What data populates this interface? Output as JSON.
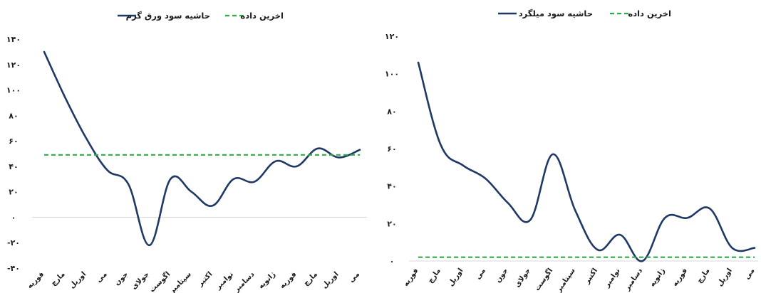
{
  "colors": {
    "series": "#1f3864",
    "reference": "#2eab49",
    "zero_line": "#d9d9d9",
    "text": "#1a1a1a"
  },
  "chart_data": [
    {
      "type": "line",
      "title": "",
      "xlabel": "",
      "ylabel": "",
      "categories": [
        "فوریه",
        "مارچ",
        "اوریل",
        "می",
        "جون",
        "جولای",
        "اگوست",
        "سپتامبر",
        "اکتبر",
        "نوامبر",
        "دسامبر",
        "ژانویه",
        "فوریه",
        "مارچ",
        "اوریل",
        "می"
      ],
      "series": [
        {
          "name": "حاشیه سود ورق گرم",
          "style": "solid",
          "values": [
            130,
            94,
            62,
            37,
            26,
            -22,
            30,
            20,
            9,
            30,
            28,
            44,
            40,
            54,
            47,
            53
          ]
        },
        {
          "name": "اخرین داده",
          "style": "dashed",
          "values": [
            49,
            49,
            49,
            49,
            49,
            49,
            49,
            49,
            49,
            49,
            49,
            49,
            49,
            49,
            49,
            49
          ]
        }
      ],
      "ylim": [
        -40,
        140
      ],
      "yticks": [
        140,
        120,
        100,
        80,
        60,
        40,
        20,
        0,
        -20,
        -40
      ],
      "ytick_labels": [
        "۱۴۰",
        "۱۲۰",
        "۱۰۰",
        "۸۰",
        "۶۰",
        "۴۰",
        "۲۰",
        "۰",
        "-۲۰",
        "-۴۰"
      ],
      "legend": "top"
    },
    {
      "type": "line",
      "title": "",
      "xlabel": "",
      "ylabel": "",
      "categories": [
        "فوریه",
        "مارچ",
        "اوریل",
        "می",
        "جون",
        "جولای",
        "اگوست",
        "سپتامبر",
        "اکتبر",
        "نوامبر",
        "دسامبر",
        "ژانویه",
        "فوریه",
        "مارچ",
        "اوریل",
        "می"
      ],
      "series": [
        {
          "name": "حاشیه سود میلگرد",
          "style": "solid",
          "values": [
            106,
            62,
            51,
            44,
            31,
            22,
            57,
            27,
            6,
            14,
            0,
            23,
            23,
            28,
            7,
            7
          ]
        },
        {
          "name": "اخرین داده",
          "style": "dashed",
          "values": [
            2,
            2,
            2,
            2,
            2,
            2,
            2,
            2,
            2,
            2,
            2,
            2,
            2,
            2,
            2,
            2
          ]
        }
      ],
      "ylim": [
        0,
        120
      ],
      "yticks": [
        120,
        100,
        80,
        60,
        40,
        20,
        0
      ],
      "ytick_labels": [
        "۱۲۰",
        "۱۰۰",
        "۸۰",
        "۶۰",
        "۴۰",
        "۲۰",
        "۰"
      ],
      "legend": "top"
    }
  ]
}
